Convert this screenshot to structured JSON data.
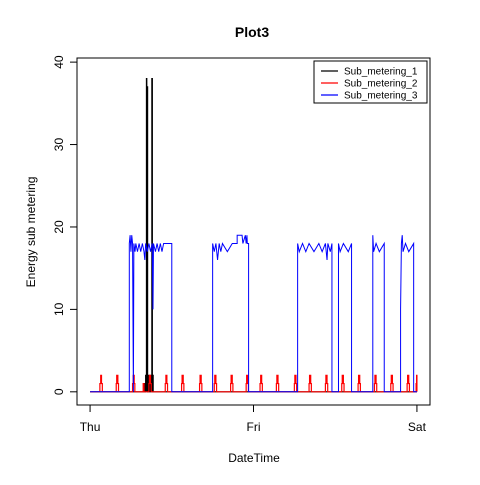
{
  "chart_data": {
    "type": "line",
    "title": "Plot3",
    "xlabel": "DateTime",
    "ylabel": "Energy sub metering",
    "x_ticks": [
      {
        "value": 0,
        "label": "Thu"
      },
      {
        "value": 1,
        "label": "Fri"
      },
      {
        "value": 2,
        "label": "Sat"
      }
    ],
    "xlim": [
      -0.08,
      2.08
    ],
    "ylim": [
      -1.6,
      40.5
    ],
    "y_ticks": [
      0,
      10,
      20,
      30,
      40
    ],
    "grid": false,
    "legend_position": "top-right",
    "series": [
      {
        "name": "Sub_metering_1",
        "color": "#000000",
        "points": [
          [
            0,
            0
          ],
          [
            0.33,
            0
          ],
          [
            0.33,
            1
          ],
          [
            0.335,
            1
          ],
          [
            0.335,
            0
          ],
          [
            0.34,
            0
          ],
          [
            0.34,
            2
          ],
          [
            0.345,
            2
          ],
          [
            0.345,
            0
          ],
          [
            0.345,
            0
          ],
          [
            0.345,
            38
          ],
          [
            0.347,
            38
          ],
          [
            0.347,
            1
          ],
          [
            0.35,
            1
          ],
          [
            0.35,
            37
          ],
          [
            0.352,
            37
          ],
          [
            0.352,
            0
          ],
          [
            0.356,
            0
          ],
          [
            0.356,
            2
          ],
          [
            0.362,
            2
          ],
          [
            0.362,
            0
          ],
          [
            0.366,
            0
          ],
          [
            0.366,
            1
          ],
          [
            0.37,
            1
          ],
          [
            0.37,
            0
          ],
          [
            0.372,
            0
          ],
          [
            0.372,
            2
          ],
          [
            0.378,
            2
          ],
          [
            0.378,
            0
          ],
          [
            0.378,
            38
          ],
          [
            0.381,
            38
          ],
          [
            0.381,
            0
          ],
          [
            0.382,
            0
          ],
          [
            0.382,
            2
          ],
          [
            0.386,
            2
          ],
          [
            0.386,
            0
          ],
          [
            2.0,
            0
          ]
        ]
      },
      {
        "name": "Sub_metering_2",
        "color": "#ff0000",
        "points": [
          [
            0,
            0
          ],
          [
            0.06,
            0
          ],
          [
            0.06,
            1
          ],
          [
            0.065,
            1
          ],
          [
            0.065,
            2
          ],
          [
            0.07,
            2
          ],
          [
            0.07,
            1
          ],
          [
            0.075,
            1
          ],
          [
            0.075,
            0
          ],
          [
            0.16,
            0
          ],
          [
            0.16,
            1
          ],
          [
            0.163,
            1
          ],
          [
            0.163,
            2
          ],
          [
            0.17,
            2
          ],
          [
            0.17,
            1
          ],
          [
            0.174,
            1
          ],
          [
            0.174,
            0
          ],
          [
            0.26,
            0
          ],
          [
            0.26,
            1
          ],
          [
            0.264,
            1
          ],
          [
            0.264,
            2
          ],
          [
            0.27,
            2
          ],
          [
            0.27,
            1
          ],
          [
            0.274,
            1
          ],
          [
            0.274,
            0
          ],
          [
            0.325,
            0
          ],
          [
            0.325,
            1
          ],
          [
            0.33,
            1
          ],
          [
            0.33,
            0
          ],
          [
            0.36,
            0
          ],
          [
            0.36,
            1
          ],
          [
            0.363,
            1
          ],
          [
            0.363,
            2
          ],
          [
            0.37,
            2
          ],
          [
            0.37,
            1
          ],
          [
            0.374,
            1
          ],
          [
            0.374,
            0
          ],
          [
            0.46,
            0
          ],
          [
            0.46,
            1
          ],
          [
            0.464,
            1
          ],
          [
            0.464,
            2
          ],
          [
            0.47,
            2
          ],
          [
            0.47,
            1
          ],
          [
            0.474,
            1
          ],
          [
            0.474,
            0
          ],
          [
            0.56,
            0
          ],
          [
            0.56,
            1
          ],
          [
            0.563,
            1
          ],
          [
            0.563,
            2
          ],
          [
            0.57,
            2
          ],
          [
            0.57,
            1
          ],
          [
            0.574,
            1
          ],
          [
            0.574,
            0
          ],
          [
            0.67,
            0
          ],
          [
            0.67,
            1
          ],
          [
            0.673,
            1
          ],
          [
            0.673,
            2
          ],
          [
            0.68,
            2
          ],
          [
            0.68,
            1
          ],
          [
            0.684,
            1
          ],
          [
            0.684,
            0
          ],
          [
            0.76,
            0
          ],
          [
            0.76,
            1
          ],
          [
            0.763,
            1
          ],
          [
            0.763,
            2
          ],
          [
            0.77,
            2
          ],
          [
            0.77,
            1
          ],
          [
            0.774,
            1
          ],
          [
            0.774,
            0
          ],
          [
            0.86,
            0
          ],
          [
            0.86,
            1
          ],
          [
            0.863,
            1
          ],
          [
            0.863,
            2
          ],
          [
            0.87,
            2
          ],
          [
            0.87,
            1
          ],
          [
            0.874,
            1
          ],
          [
            0.874,
            0
          ],
          [
            0.955,
            0
          ],
          [
            0.955,
            1
          ],
          [
            0.958,
            1
          ],
          [
            0.958,
            2
          ],
          [
            0.965,
            2
          ],
          [
            0.965,
            1
          ],
          [
            0.969,
            1
          ],
          [
            0.969,
            0
          ],
          [
            1.04,
            0
          ],
          [
            1.04,
            1
          ],
          [
            1.044,
            1
          ],
          [
            1.044,
            2
          ],
          [
            1.05,
            2
          ],
          [
            1.05,
            1
          ],
          [
            1.054,
            1
          ],
          [
            1.054,
            0
          ],
          [
            1.14,
            0
          ],
          [
            1.14,
            1
          ],
          [
            1.143,
            1
          ],
          [
            1.143,
            2
          ],
          [
            1.15,
            2
          ],
          [
            1.15,
            1
          ],
          [
            1.154,
            1
          ],
          [
            1.154,
            0
          ],
          [
            1.25,
            0
          ],
          [
            1.25,
            1
          ],
          [
            1.253,
            1
          ],
          [
            1.253,
            2
          ],
          [
            1.26,
            2
          ],
          [
            1.26,
            1
          ],
          [
            1.264,
            1
          ],
          [
            1.264,
            0
          ],
          [
            1.34,
            0
          ],
          [
            1.34,
            1
          ],
          [
            1.343,
            1
          ],
          [
            1.343,
            2
          ],
          [
            1.35,
            2
          ],
          [
            1.35,
            1
          ],
          [
            1.354,
            1
          ],
          [
            1.354,
            0
          ],
          [
            1.44,
            0
          ],
          [
            1.44,
            1
          ],
          [
            1.443,
            1
          ],
          [
            1.443,
            2
          ],
          [
            1.45,
            2
          ],
          [
            1.45,
            1
          ],
          [
            1.454,
            1
          ],
          [
            1.454,
            0
          ],
          [
            1.54,
            0
          ],
          [
            1.54,
            1
          ],
          [
            1.543,
            1
          ],
          [
            1.543,
            2
          ],
          [
            1.55,
            2
          ],
          [
            1.55,
            1
          ],
          [
            1.554,
            1
          ],
          [
            1.554,
            0
          ],
          [
            1.64,
            0
          ],
          [
            1.64,
            1
          ],
          [
            1.643,
            1
          ],
          [
            1.643,
            2
          ],
          [
            1.65,
            2
          ],
          [
            1.65,
            1
          ],
          [
            1.654,
            1
          ],
          [
            1.654,
            0
          ],
          [
            1.74,
            0
          ],
          [
            1.74,
            1
          ],
          [
            1.743,
            1
          ],
          [
            1.743,
            2
          ],
          [
            1.75,
            2
          ],
          [
            1.75,
            1
          ],
          [
            1.754,
            1
          ],
          [
            1.754,
            0
          ],
          [
            1.84,
            0
          ],
          [
            1.84,
            1
          ],
          [
            1.843,
            1
          ],
          [
            1.843,
            2
          ],
          [
            1.85,
            2
          ],
          [
            1.85,
            1
          ],
          [
            1.854,
            1
          ],
          [
            1.854,
            0
          ],
          [
            1.94,
            0
          ],
          [
            1.94,
            1
          ],
          [
            1.943,
            1
          ],
          [
            1.943,
            2
          ],
          [
            1.95,
            2
          ],
          [
            1.95,
            1
          ],
          [
            1.954,
            1
          ],
          [
            1.954,
            0
          ],
          [
            1.995,
            0
          ],
          [
            1.995,
            1
          ],
          [
            1.998,
            1
          ],
          [
            1.998,
            2
          ],
          [
            2.0,
            2
          ],
          [
            2.0,
            0
          ]
        ]
      },
      {
        "name": "Sub_metering_3",
        "color": "#0000ff",
        "points": [
          [
            0,
            0
          ],
          [
            0.24,
            0
          ],
          [
            0.24,
            18
          ],
          [
            0.245,
            19
          ],
          [
            0.25,
            17
          ],
          [
            0.255,
            19
          ],
          [
            0.26,
            18
          ],
          [
            0.265,
            0
          ],
          [
            0.268,
            18
          ],
          [
            0.275,
            17
          ],
          [
            0.28,
            18
          ],
          [
            0.29,
            17
          ],
          [
            0.3,
            18
          ],
          [
            0.31,
            17
          ],
          [
            0.32,
            18
          ],
          [
            0.33,
            17
          ],
          [
            0.335,
            16
          ],
          [
            0.34,
            18
          ],
          [
            0.35,
            17
          ],
          [
            0.36,
            18
          ],
          [
            0.37,
            17
          ],
          [
            0.38,
            18
          ],
          [
            0.385,
            10
          ],
          [
            0.388,
            18
          ],
          [
            0.4,
            17
          ],
          [
            0.41,
            18
          ],
          [
            0.42,
            17
          ],
          [
            0.43,
            18
          ],
          [
            0.44,
            17
          ],
          [
            0.45,
            18
          ],
          [
            0.5,
            18
          ],
          [
            0.5,
            0
          ],
          [
            0.75,
            0
          ],
          [
            0.75,
            18
          ],
          [
            0.76,
            17
          ],
          [
            0.77,
            18
          ],
          [
            0.78,
            16
          ],
          [
            0.785,
            17
          ],
          [
            0.79,
            18
          ],
          [
            0.8,
            17
          ],
          [
            0.81,
            18
          ],
          [
            0.84,
            17
          ],
          [
            0.87,
            18
          ],
          [
            0.9,
            18
          ],
          [
            0.9,
            19
          ],
          [
            0.93,
            19
          ],
          [
            0.935,
            18
          ],
          [
            0.95,
            19
          ],
          [
            0.955,
            18
          ],
          [
            0.96,
            19
          ],
          [
            0.962,
            18
          ],
          [
            0.97,
            18
          ],
          [
            0.97,
            0
          ],
          [
            1.27,
            0
          ],
          [
            1.27,
            18
          ],
          [
            1.28,
            17
          ],
          [
            1.3,
            18
          ],
          [
            1.32,
            17
          ],
          [
            1.34,
            18
          ],
          [
            1.37,
            17
          ],
          [
            1.4,
            18
          ],
          [
            1.42,
            17
          ],
          [
            1.44,
            18
          ],
          [
            1.45,
            16
          ],
          [
            1.455,
            18
          ],
          [
            1.47,
            17
          ],
          [
            1.48,
            18
          ],
          [
            1.48,
            0
          ],
          [
            1.52,
            0
          ],
          [
            1.52,
            18
          ],
          [
            1.53,
            17
          ],
          [
            1.55,
            18
          ],
          [
            1.58,
            17
          ],
          [
            1.6,
            18
          ],
          [
            1.6,
            0
          ],
          [
            1.73,
            0
          ],
          [
            1.73,
            19
          ],
          [
            1.735,
            17
          ],
          [
            1.75,
            18
          ],
          [
            1.77,
            17
          ],
          [
            1.8,
            18
          ],
          [
            1.8,
            0
          ],
          [
            1.84,
            0
          ],
          [
            1.84,
            0
          ],
          [
            1.9,
            0
          ],
          [
            1.9,
            10
          ],
          [
            1.905,
            18
          ],
          [
            1.91,
            19
          ],
          [
            1.915,
            17
          ],
          [
            1.93,
            18
          ],
          [
            1.95,
            17
          ],
          [
            1.98,
            18
          ],
          [
            1.98,
            0
          ],
          [
            2.0,
            0
          ]
        ]
      }
    ]
  }
}
